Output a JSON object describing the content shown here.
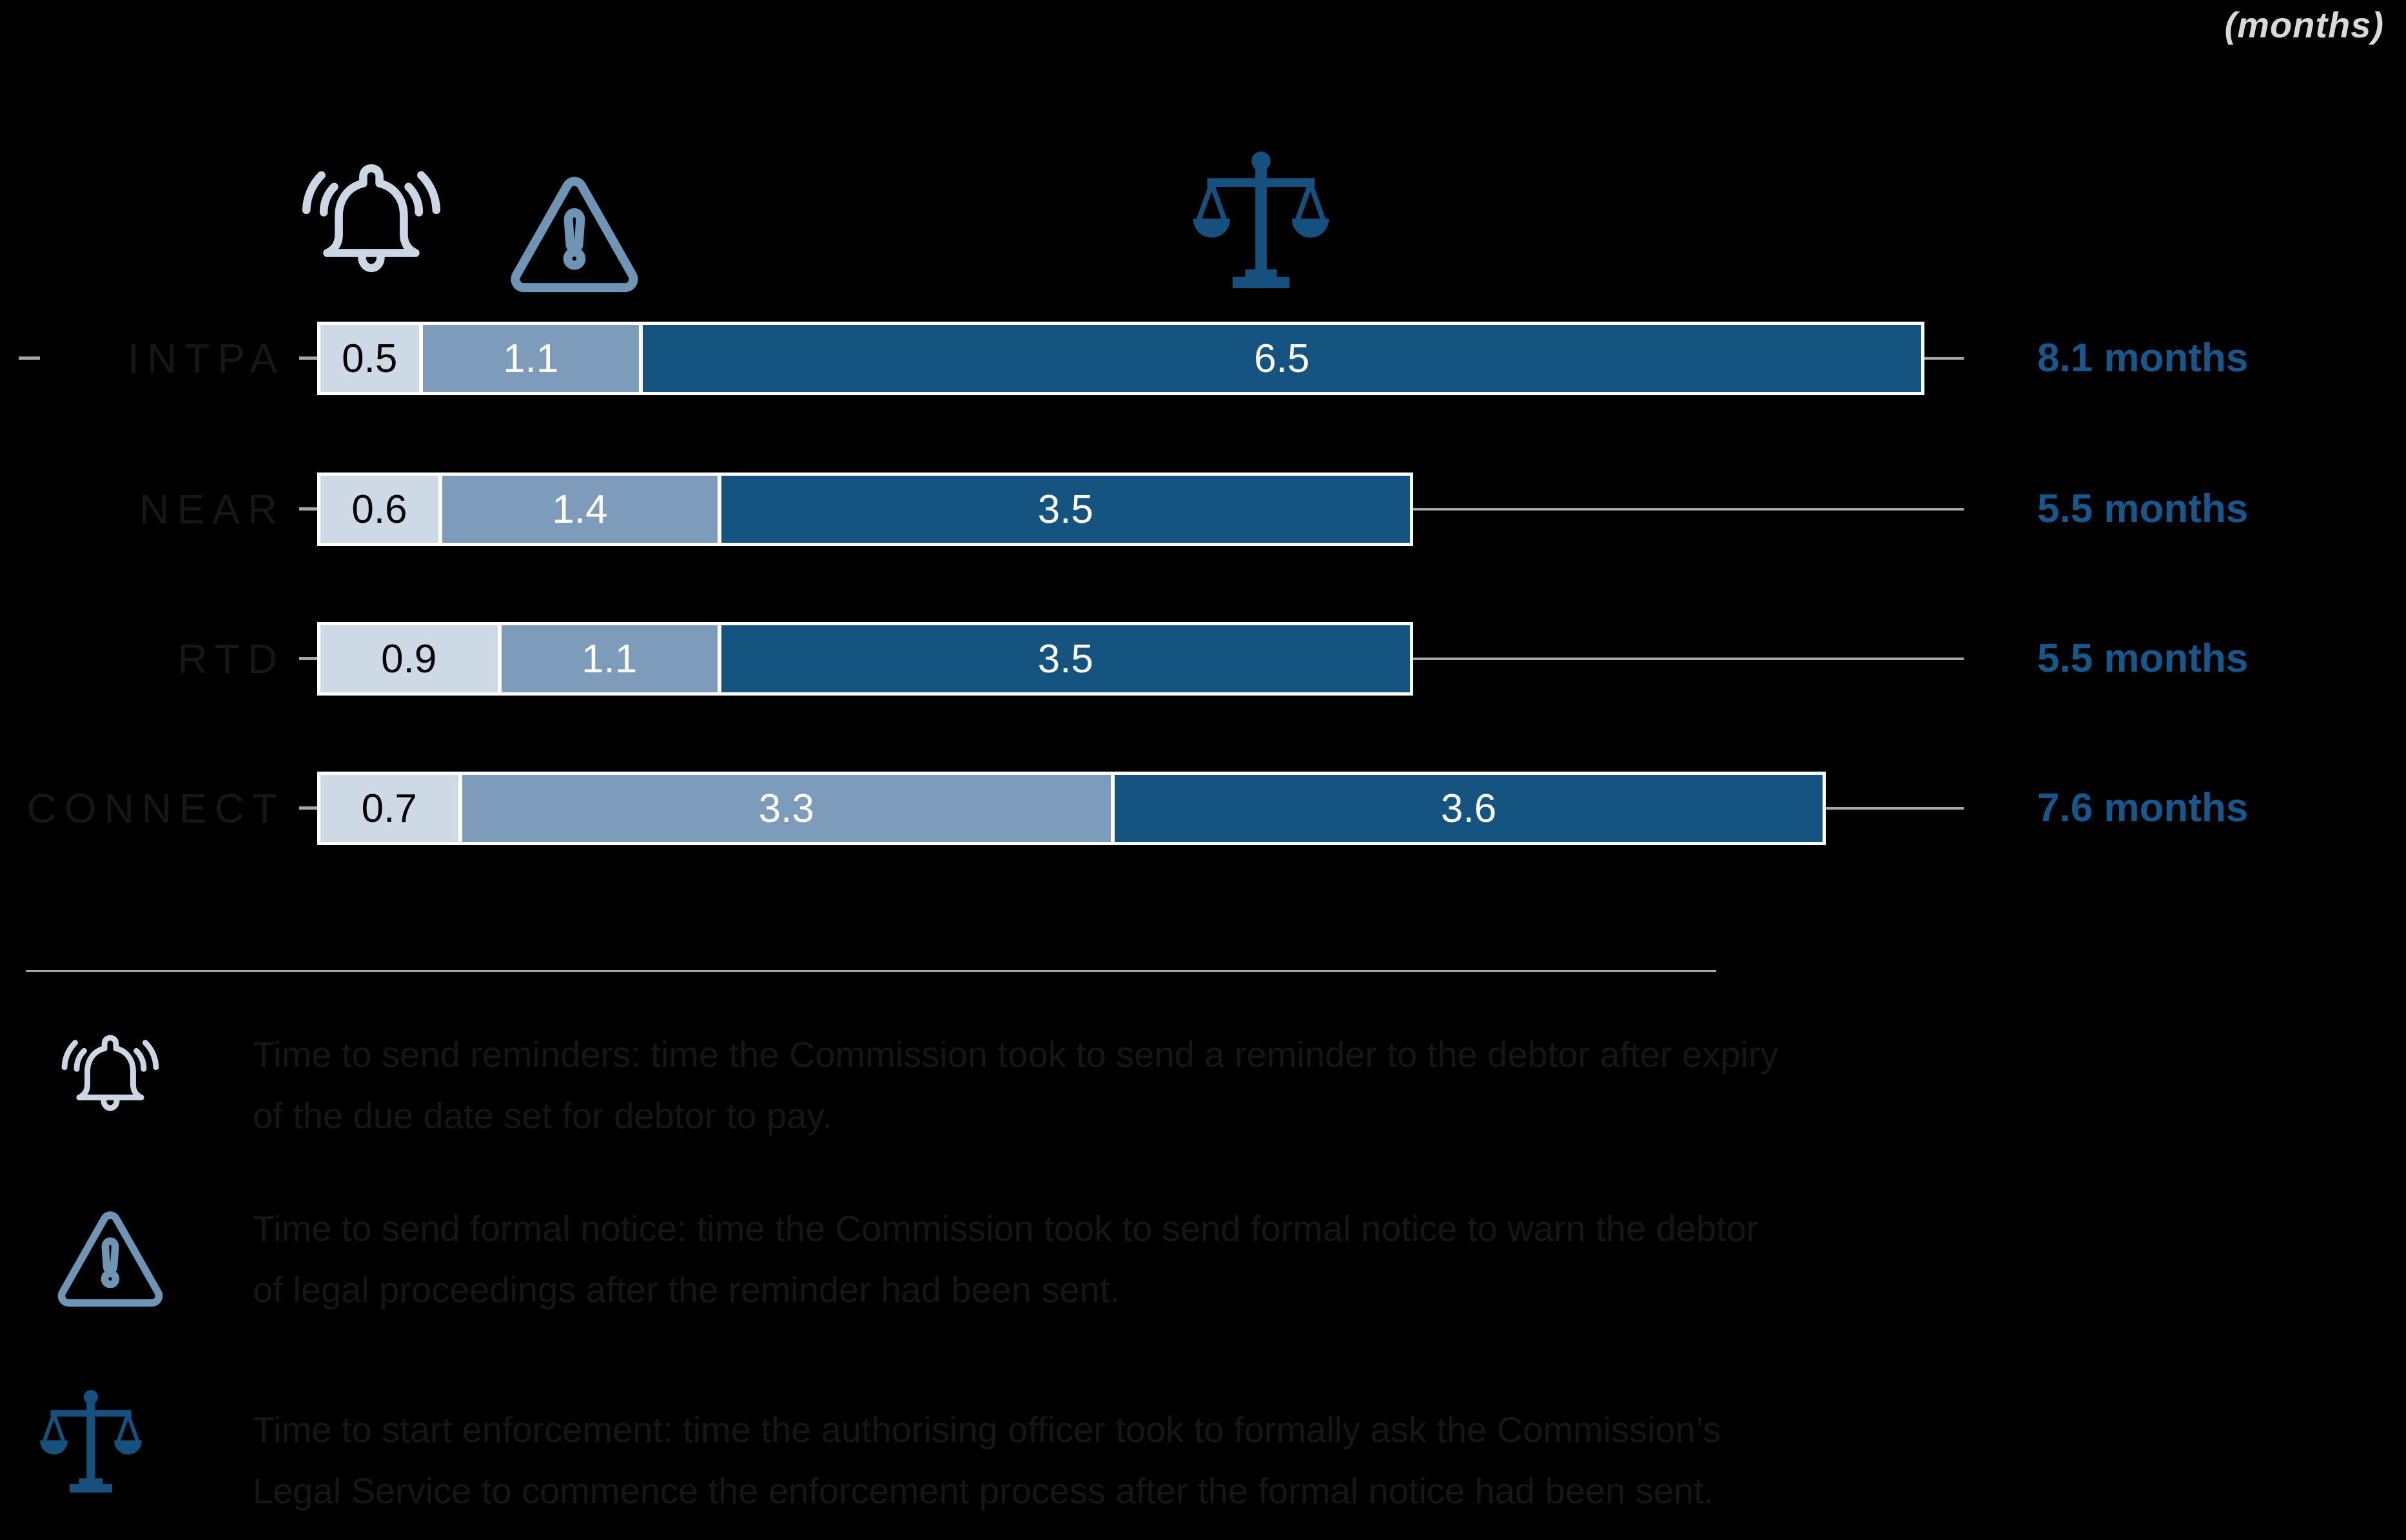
{
  "header": {
    "unit_note": "(months)"
  },
  "colors": {
    "bell_icon": "#ccd7e5",
    "warning_icon": "#6f94b6",
    "scales_icon": "#15507e",
    "segment_light": "#cdd9e5",
    "segment_mid": "#7d9cbc",
    "segment_dark": "#155380",
    "total_label": "#17578c",
    "unit_note": "#d9d9d9",
    "gray_line": "#a6a6a6",
    "dark_text": "#161616"
  },
  "icons": {
    "bell": "bell-icon",
    "warning": "warning-triangle-icon",
    "scales": "scales-of-justice-icon"
  },
  "chart_data": {
    "type": "bar",
    "subtype": "horizontal_stacked",
    "unit": "months",
    "categories": [
      "INTPA",
      "NEAR",
      "RTD",
      "CONNECT"
    ],
    "series": [
      {
        "name": "Time to send reminders",
        "icon": "bell-icon",
        "color": "#cdd9e5",
        "text_color": "#000000",
        "values": [
          0.5,
          0.6,
          0.9,
          0.7
        ]
      },
      {
        "name": "Time to send formal notice",
        "icon": "warning-triangle-icon",
        "color": "#7d9cbc",
        "text_color": "#ffffff",
        "values": [
          1.1,
          1.4,
          1.1,
          3.3
        ]
      },
      {
        "name": "Time to start enforcement",
        "icon": "scales-of-justice-icon",
        "color": "#155380",
        "text_color": "#ffffff",
        "values": [
          6.5,
          3.5,
          3.5,
          3.6
        ]
      }
    ],
    "totals": [
      "8.1 months",
      "5.5 months",
      "5.5 months",
      "7.6 months"
    ],
    "xlim": [
      0,
      8.1
    ],
    "grid": false,
    "legend_position": "bottom"
  },
  "legend": {
    "items": [
      {
        "icon": "bell-icon",
        "line1": "Time to send reminders: time the Commission took to send a reminder to the debtor after expiry",
        "line2": "of the due date set for debtor to pay."
      },
      {
        "icon": "warning-triangle-icon",
        "line1": "Time to send formal notice: time the Commission took to send formal notice to warn the debtor",
        "line2": "of legal proceedings after the reminder had been sent."
      },
      {
        "icon": "scales-of-justice-icon",
        "line1": "Time to start enforcement: time the authorising officer took to formally ask the Commission’s",
        "line2": "Legal Service to commence the enforcement process after the formal notice had been sent."
      }
    ]
  }
}
